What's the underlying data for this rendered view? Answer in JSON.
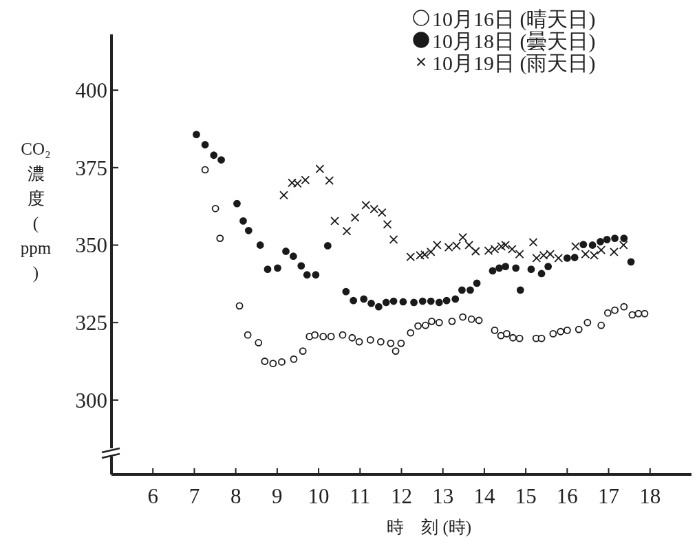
{
  "chart_data": {
    "type": "scatter",
    "xlabel": "時　刻 (時)",
    "ylabel": "CO₂濃度(ppm)",
    "xlim": [
      5,
      19
    ],
    "ylim": [
      276,
      418
    ],
    "xticks": [
      6,
      7,
      8,
      9,
      10,
      11,
      12,
      13,
      14,
      15,
      16,
      17,
      18
    ],
    "yticks": [
      300,
      325,
      350,
      375,
      400
    ],
    "legend": "top right",
    "series": [
      {
        "name": "10月16日 (晴天日)",
        "color": "#ffffff",
        "marker": "circle",
        "x": [
          7.26,
          7.51,
          7.62,
          8.09,
          8.29,
          8.55,
          8.7,
          8.9,
          9.11,
          9.4,
          9.62,
          9.78,
          9.91,
          10.11,
          10.3,
          10.58,
          10.81,
          10.98,
          11.25,
          11.5,
          11.74,
          11.86,
          11.99,
          12.22,
          12.4,
          12.58,
          12.73,
          12.91,
          13.22,
          13.48,
          13.69,
          13.87,
          14.25,
          14.4,
          14.54,
          14.69,
          14.85,
          15.25,
          15.38,
          15.66,
          15.84,
          16.0,
          16.28,
          16.49,
          16.82,
          16.98,
          17.15,
          17.37,
          17.57,
          17.72,
          17.87
        ],
        "values": [
          374.3,
          361.8,
          352.2,
          330.4,
          321,
          318.5,
          312.5,
          311.8,
          312.3,
          313.2,
          315.8,
          320.5,
          321,
          320.5,
          320.5,
          321,
          320.1,
          318.8,
          319.4,
          318.8,
          318.3,
          315.8,
          318.3,
          321.7,
          323.9,
          324.1,
          325.4,
          325,
          325.4,
          326.8,
          326.1,
          325.7,
          322.5,
          320.8,
          321.4,
          320.1,
          319.9,
          319.9,
          319.9,
          321.4,
          322.1,
          322.5,
          322.8,
          325,
          324.1,
          328.1,
          329,
          330.1,
          327.5,
          327.9,
          327.9
        ]
      },
      {
        "name": "10月18日 (曇天日)",
        "color": "#1a1a1a",
        "marker": "circle",
        "x": [
          7.05,
          7.26,
          7.47,
          7.65,
          8.03,
          8.18,
          8.31,
          8.59,
          8.77,
          9.01,
          9.21,
          9.39,
          9.58,
          9.72,
          9.93,
          10.22,
          10.66,
          10.84,
          11.09,
          11.27,
          11.45,
          11.63,
          11.81,
          12.04,
          12.3,
          12.51,
          12.71,
          12.91,
          13.09,
          13.3,
          13.46,
          13.66,
          13.82,
          14.2,
          14.36,
          14.51,
          14.76,
          14.87,
          15.13,
          15.38,
          15.54,
          16.0,
          16.18,
          16.39,
          16.61,
          16.8,
          16.96,
          17.15,
          17.37,
          17.54
        ],
        "values": [
          385.7,
          382.4,
          379,
          377.5,
          363.4,
          357.8,
          354.7,
          350,
          342.2,
          342.6,
          348,
          346.4,
          343.3,
          340.4,
          340.4,
          349.8,
          335,
          332.1,
          332.6,
          331.2,
          330.1,
          331.5,
          331.9,
          331.7,
          331.5,
          331.9,
          331.9,
          331.5,
          332.1,
          332.6,
          335.5,
          335.5,
          337.7,
          341.7,
          342.6,
          343.1,
          342.6,
          335.5,
          342.2,
          340.8,
          343.1,
          345.8,
          346,
          350.2,
          350,
          351.1,
          351.8,
          352.2,
          352.2,
          344.6
        ]
      },
      {
        "name": "10月19日 (雨天日)",
        "color": "#1a1a1a",
        "marker": "cross",
        "x": [
          9.16,
          9.36,
          9.49,
          9.68,
          10.03,
          10.26,
          10.39,
          10.68,
          10.88,
          11.14,
          11.34,
          11.53,
          11.66,
          11.81,
          12.22,
          12.45,
          12.56,
          12.71,
          12.86,
          13.14,
          13.33,
          13.48,
          13.63,
          13.79,
          14.1,
          14.25,
          14.41,
          14.51,
          14.67,
          14.85,
          15.18,
          15.26,
          15.43,
          15.59,
          15.79,
          16.2,
          16.44,
          16.65,
          16.82,
          17.13,
          17.36
        ],
        "values": [
          366.1,
          370.1,
          369.9,
          371,
          374.6,
          370.8,
          357.8,
          354.5,
          358.9,
          362.9,
          361.6,
          360.5,
          356.7,
          351.8,
          346.2,
          346.7,
          346.9,
          347.8,
          350,
          349.3,
          349.8,
          352.5,
          350,
          348,
          348.2,
          348.7,
          349.6,
          350,
          348.7,
          347.1,
          350.9,
          345.8,
          346.7,
          347.1,
          345.8,
          349.6,
          347.1,
          346.7,
          348.4,
          347.8,
          350
        ]
      }
    ]
  }
}
